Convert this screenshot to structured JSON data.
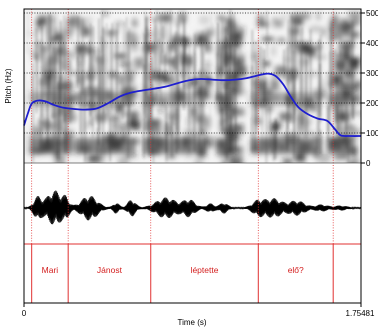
{
  "chart_data": {
    "type": "praat-spectrogram-pitch-textgrid",
    "ylabel": "Pitch (Hz)",
    "xlabel": "Time (s)",
    "xlim": [
      0,
      1.75481
    ],
    "x_tick_labels": [
      "0",
      "1.75481"
    ],
    "ylim": [
      0,
      500
    ],
    "y_ticks": [
      0,
      100,
      200,
      300,
      400,
      500
    ],
    "y_tick_labels": [
      "0",
      "100",
      "200",
      "300",
      "400",
      "500"
    ],
    "pitch_contour": [
      {
        "t": 0.0,
        "hz": 125
      },
      {
        "t": 0.02,
        "hz": 165
      },
      {
        "t": 0.04,
        "hz": 198
      },
      {
        "t": 0.07,
        "hz": 208
      },
      {
        "t": 0.11,
        "hz": 206
      },
      {
        "t": 0.15,
        "hz": 195
      },
      {
        "t": 0.2,
        "hz": 185
      },
      {
        "t": 0.26,
        "hz": 180
      },
      {
        "t": 0.32,
        "hz": 178
      },
      {
        "t": 0.38,
        "hz": 182
      },
      {
        "t": 0.44,
        "hz": 200
      },
      {
        "t": 0.5,
        "hz": 222
      },
      {
        "t": 0.56,
        "hz": 235
      },
      {
        "t": 0.62,
        "hz": 242
      },
      {
        "t": 0.68,
        "hz": 248
      },
      {
        "t": 0.74,
        "hz": 255
      },
      {
        "t": 0.8,
        "hz": 266
      },
      {
        "t": 0.86,
        "hz": 276
      },
      {
        "t": 0.92,
        "hz": 280
      },
      {
        "t": 0.98,
        "hz": 278
      },
      {
        "t": 1.04,
        "hz": 276
      },
      {
        "t": 1.1,
        "hz": 278
      },
      {
        "t": 1.16,
        "hz": 283
      },
      {
        "t": 1.22,
        "hz": 292
      },
      {
        "t": 1.27,
        "hz": 298
      },
      {
        "t": 1.31,
        "hz": 290
      },
      {
        "t": 1.35,
        "hz": 262
      },
      {
        "t": 1.39,
        "hz": 220
      },
      {
        "t": 1.43,
        "hz": 185
      },
      {
        "t": 1.48,
        "hz": 162
      },
      {
        "t": 1.53,
        "hz": 148
      },
      {
        "t": 1.58,
        "hz": 140
      },
      {
        "t": 1.62,
        "hz": 112
      },
      {
        "t": 1.65,
        "hz": 92
      },
      {
        "t": 1.7,
        "hz": 90
      },
      {
        "t": 1.75481,
        "hz": 90
      }
    ],
    "intervals": [
      {
        "start": 0.0,
        "end": 0.04,
        "label": ""
      },
      {
        "start": 0.04,
        "end": 0.23,
        "label": "Mari"
      },
      {
        "start": 0.23,
        "end": 0.66,
        "label": "Jánost"
      },
      {
        "start": 0.66,
        "end": 1.22,
        "label": "léptette"
      },
      {
        "start": 1.22,
        "end": 1.61,
        "label": "elő?"
      },
      {
        "start": 1.61,
        "end": 1.75481,
        "label": ""
      }
    ],
    "colors": {
      "pitch": "#1f1fcf",
      "boundaries": "#e03030",
      "labels": "#d42020",
      "gridlines": "#000000",
      "frame": "#000000"
    }
  }
}
